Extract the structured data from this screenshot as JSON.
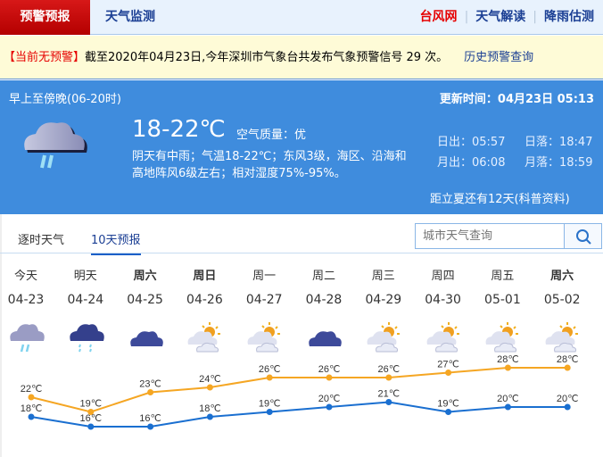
{
  "nav": {
    "active": "预警预报",
    "monitor": "天气监测",
    "links": [
      "台风网",
      "天气解读",
      "降雨估测"
    ]
  },
  "alert": {
    "status": "【当前无预警】",
    "text": "截至2020年04月23日,今年深圳市气象台共发布气象预警信号 29 次。",
    "history_link": "历史预警查询"
  },
  "now": {
    "period": "早上至傍晚(06-20时)",
    "updated": "更新时间：04月23日 05:13",
    "temp": "18-22℃",
    "air_quality": "空气质量：优",
    "desc1": "阴天有中雨；气温18-22℃；东风3级，海区、沿海和",
    "desc2": "高地阵风6级左右；相对湿度75%-95%。",
    "sunrise": "日出：05:57",
    "sunset": "日落：18:47",
    "moonrise": "月出：06:08",
    "moonset": "月落：18:59",
    "solar_term": "距立夏还有12天(科普资料)",
    "icon": "rain-cloud-icon"
  },
  "tabs": [
    "逐时天气",
    "10天预报"
  ],
  "search": {
    "placeholder": "城市天气查询"
  },
  "colors": {
    "high": "#f5a623",
    "low": "#1a6fd0",
    "nav_active": "#c80000",
    "panel": "#3f8cdd"
  },
  "forecast": [
    {
      "day": "今天",
      "date": "04-23",
      "icon": "rain",
      "bold": false
    },
    {
      "day": "明天",
      "date": "04-24",
      "icon": "shower",
      "bold": false
    },
    {
      "day": "周六",
      "date": "04-25",
      "icon": "overcast",
      "bold": true
    },
    {
      "day": "周日",
      "date": "04-26",
      "icon": "partly-cloudy",
      "bold": true
    },
    {
      "day": "周一",
      "date": "04-27",
      "icon": "partly-cloudy",
      "bold": false
    },
    {
      "day": "周二",
      "date": "04-28",
      "icon": "overcast",
      "bold": false
    },
    {
      "day": "周三",
      "date": "04-29",
      "icon": "partly-cloudy",
      "bold": false
    },
    {
      "day": "周四",
      "date": "04-30",
      "icon": "partly-cloudy",
      "bold": false
    },
    {
      "day": "周五",
      "date": "05-01",
      "icon": "partly-cloudy",
      "bold": false
    },
    {
      "day": "周六",
      "date": "05-02",
      "icon": "partly-cloudy",
      "bold": true
    }
  ],
  "chart_data": {
    "type": "line",
    "categories": [
      "04-23",
      "04-24",
      "04-25",
      "04-26",
      "04-27",
      "04-28",
      "04-29",
      "04-30",
      "05-01",
      "05-02"
    ],
    "unit": "℃",
    "series": [
      {
        "values": [
          22,
          19,
          23,
          24,
          26,
          26,
          26,
          27,
          28,
          28
        ],
        "color": "#f5a623"
      },
      {
        "values": [
          18,
          16,
          16,
          18,
          19,
          20,
          21,
          19,
          20,
          20
        ],
        "color": "#1a6fd0"
      }
    ]
  }
}
